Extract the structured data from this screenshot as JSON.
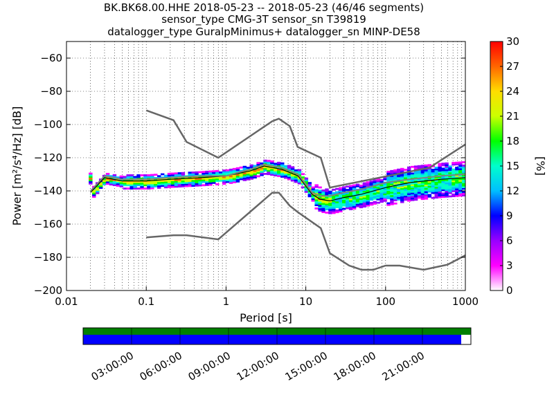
{
  "title_lines": [
    "BK.BK68.00.HHE   2018-05-23 -- 2018-05-23  (46/46 segments)",
    "sensor_type CMG-3T sensor_sn T39819",
    "datalogger_type GuralpMinimus+ datalogger_sn MINP-DE58"
  ],
  "chart_data": {
    "type": "heatmap",
    "x_scale": "log",
    "xlim": [
      0.01,
      1000
    ],
    "ylim": [
      -200,
      -50
    ],
    "xlabel": "Period [s]",
    "ylabel": "Power [m²/s⁴/Hz] [dB]",
    "x_ticks": [
      {
        "value": 0.01,
        "label": "0.01"
      },
      {
        "value": 0.1,
        "label": "0.1"
      },
      {
        "value": 1,
        "label": "1"
      },
      {
        "value": 10,
        "label": "10"
      },
      {
        "value": 100,
        "label": "100"
      },
      {
        "value": 1000,
        "label": "1000"
      }
    ],
    "y_ticks": [
      {
        "value": -60,
        "label": "−60"
      },
      {
        "value": -80,
        "label": "−80"
      },
      {
        "value": -100,
        "label": "−100"
      },
      {
        "value": -120,
        "label": "−120"
      },
      {
        "value": -140,
        "label": "−140"
      },
      {
        "value": -160,
        "label": "−160"
      },
      {
        "value": -180,
        "label": "−180"
      },
      {
        "value": -200,
        "label": "−200"
      }
    ],
    "grid": "dotted",
    "nhnm": {
      "x": [
        0.1,
        0.22,
        0.32,
        0.8,
        3.8,
        4.6,
        6.3,
        7.9,
        15.4,
        20,
        35,
        50,
        70,
        100,
        150,
        300,
        600,
        1000
      ],
      "y": [
        -168.0,
        -166.7,
        -166.7,
        -169.2,
        -141.1,
        -141.1,
        -149.0,
        -152.7,
        -162.4,
        -177.5,
        -185.0,
        -187.5,
        -187.5,
        -185.0,
        -185.0,
        -187.5,
        -184.4,
        -178.8
      ]
    },
    "nlnm_high": {
      "x": [
        0.1,
        0.22,
        0.32,
        0.8,
        3.8,
        4.6,
        6.3,
        7.9,
        15.4,
        20,
        354.8
      ],
      "y": [
        -91.5,
        -97.4,
        -110.5,
        -120.0,
        -98.0,
        -96.5,
        -101.0,
        -113.5,
        -120.0,
        -138.0,
        -126.0
      ]
    },
    "nhnm_tail": {
      "x": [
        354.8,
        1000
      ],
      "y": [
        -126.0,
        -112.0
      ]
    },
    "mean_line": {
      "x": [
        0.02,
        0.03,
        0.05,
        0.1,
        0.2,
        0.5,
        1,
        2,
        3,
        5,
        8,
        12,
        15,
        20,
        30,
        50,
        100,
        200,
        500,
        1000
      ],
      "y": [
        -140,
        -131,
        -133,
        -133,
        -132,
        -131,
        -131,
        -127,
        -124,
        -126,
        -130,
        -141,
        -143,
        -143,
        -141,
        -139,
        -135,
        -133,
        -131,
        -130
      ]
    },
    "mode_line": {
      "x": [
        0.02,
        0.03,
        0.05,
        0.1,
        0.2,
        0.5,
        1,
        2,
        3,
        5,
        8,
        12,
        15,
        20,
        30,
        50,
        100,
        200,
        500,
        1000
      ],
      "y": [
        -141,
        -132,
        -134,
        -134,
        -133,
        -132,
        -131,
        -128,
        -125,
        -127,
        -131,
        -142,
        -145,
        -146,
        -144,
        -142,
        -138,
        -135,
        -133,
        -132
      ]
    },
    "colorbar": {
      "label": "[%]",
      "range": [
        0,
        30
      ],
      "ticks": [
        "0",
        "3",
        "6",
        "9",
        "12",
        "15",
        "18",
        "21",
        "24",
        "27",
        "30"
      ],
      "colormap": [
        "#ffffff",
        "#ff00ff",
        "#9900ff",
        "#0000ff",
        "#00bfff",
        "#00ffcc",
        "#00ff00",
        "#ccff00",
        "#ffdd00",
        "#ff6600",
        "#ff0000"
      ]
    },
    "time_axis": {
      "ticks": [
        "03:00:00",
        "06:00:00",
        "09:00:00",
        "12:00:00",
        "15:00:00",
        "18:00:00",
        "21:00:00"
      ],
      "coverage_fraction": 0.975,
      "green_color": "#007f00",
      "blue_color": "#0000ff"
    }
  }
}
